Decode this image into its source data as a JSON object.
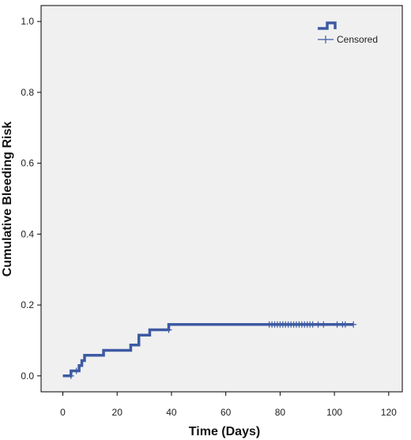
{
  "chart_data": {
    "type": "line",
    "subtype": "kaplan-meier-cumulative-incidence",
    "xlabel": "Time (Days)",
    "ylabel": "Cumulative Bleeding Risk",
    "xlim": [
      -8,
      125
    ],
    "ylim": [
      -0.045,
      1.045
    ],
    "xticks": [
      0,
      20,
      40,
      60,
      80,
      100,
      120
    ],
    "xtick_labels": [
      "0",
      "20",
      "40",
      "60",
      "80",
      "100",
      "120"
    ],
    "yticks": [
      0.0,
      0.2,
      0.4,
      0.6,
      0.8,
      1.0
    ],
    "ytick_labels": [
      "0.0",
      "0.2",
      "0.4",
      "0.6",
      "0.8",
      "1.0"
    ],
    "grid": false,
    "legend": {
      "placement": "top-right",
      "entries": [
        {
          "label": "",
          "marker": "step-line"
        },
        {
          "label": "Censored",
          "marker": "plus"
        }
      ]
    },
    "colors": {
      "series": "#3d5aa3",
      "plot_bg": "#f0f0f0",
      "axis": "#000000"
    },
    "series": [
      {
        "steps": [
          [
            0,
            0.0
          ],
          [
            3,
            0.014
          ],
          [
            6,
            0.029
          ],
          [
            7,
            0.043
          ],
          [
            8,
            0.058
          ],
          [
            15,
            0.072
          ],
          [
            25,
            0.087
          ],
          [
            28,
            0.115
          ],
          [
            32,
            0.13
          ],
          [
            39,
            0.145
          ],
          [
            107,
            0.145
          ]
        ],
        "censored": [
          [
            3,
            0.0
          ],
          [
            5,
            0.014
          ],
          [
            39,
            0.13
          ],
          [
            76,
            0.145
          ],
          [
            77,
            0.145
          ],
          [
            78,
            0.145
          ],
          [
            79,
            0.145
          ],
          [
            80,
            0.145
          ],
          [
            81,
            0.145
          ],
          [
            82,
            0.145
          ],
          [
            83,
            0.145
          ],
          [
            84,
            0.145
          ],
          [
            85,
            0.145
          ],
          [
            86,
            0.145
          ],
          [
            87,
            0.145
          ],
          [
            88,
            0.145
          ],
          [
            89,
            0.145
          ],
          [
            90,
            0.145
          ],
          [
            91,
            0.145
          ],
          [
            92,
            0.145
          ],
          [
            94,
            0.145
          ],
          [
            96,
            0.145
          ],
          [
            101,
            0.145
          ],
          [
            103,
            0.145
          ],
          [
            104,
            0.145
          ],
          [
            107,
            0.145
          ]
        ]
      }
    ]
  }
}
